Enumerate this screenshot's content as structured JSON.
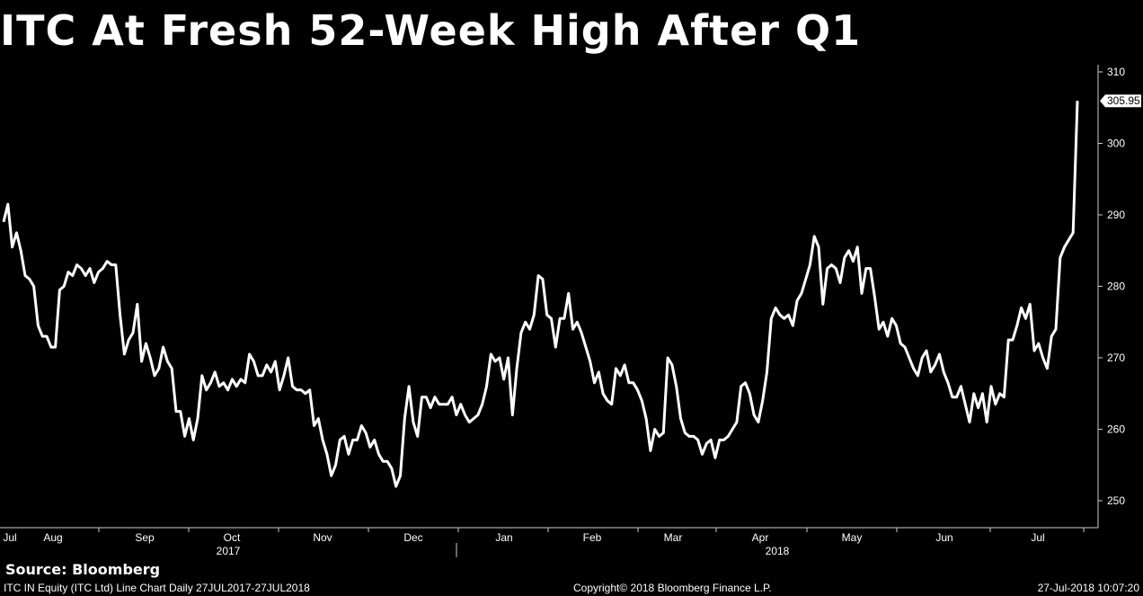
{
  "title": "ITC At Fresh 52-Week High After Q1",
  "source": "Source: Bloomberg",
  "footer": {
    "left": "ITC IN Equity (ITC Ltd) Line Chart  Daily 27JUL2017-27JUL2018",
    "center": "Copyright© 2018 Bloomberg Finance L.P.",
    "right": "27-Jul-2018 10:07:20"
  },
  "chart_data": {
    "type": "line",
    "title": "ITC At Fresh 52-Week High After Q1",
    "x_labels": [
      "Jul",
      "Aug",
      "Sep",
      "Oct",
      "Nov",
      "Dec",
      "Jan",
      "Feb",
      "Mar",
      "Apr",
      "May",
      "Jun",
      "Jul"
    ],
    "year_labels": [
      "2017",
      "2018"
    ],
    "y_ticks": [
      250,
      260,
      270,
      280,
      290,
      300,
      310
    ],
    "ylim": [
      247,
      312
    ],
    "last_value": "305.95",
    "grid": false,
    "line_color": "#ffffff",
    "background": "#000000",
    "series": [
      {
        "values": [
          289,
          291.5,
          285.5,
          287.5,
          285,
          281.5,
          281,
          280,
          274.5,
          273,
          273,
          271.5,
          271.5,
          279.5,
          280,
          282,
          281.5,
          283,
          282.5,
          281.5,
          282.5,
          280.5,
          282,
          282.5,
          283.5,
          283,
          283,
          276,
          270.5,
          272.5,
          273.5,
          277.5,
          269.5,
          272,
          270,
          267.5,
          268.5,
          271.5,
          269.5,
          268.5,
          262.5,
          262.5,
          259,
          261.5,
          258.5,
          261.5,
          267.5,
          265.5,
          266.5,
          268,
          266,
          266.5,
          265.5,
          267,
          266,
          267,
          266.5,
          270.5,
          269.5,
          267.5,
          267.5,
          269,
          268,
          269.5,
          265.5,
          267.5,
          270,
          266,
          265.5,
          265.5,
          265,
          265.5,
          260.5,
          261.5,
          258.5,
          256.5,
          253.5,
          255,
          258.5,
          259,
          256.5,
          258.5,
          258.5,
          260.5,
          259.5,
          257.5,
          258.5,
          256.5,
          255.5,
          255.5,
          254.5,
          252,
          253.5,
          261.5,
          266,
          261,
          259,
          264.5,
          264.5,
          263,
          264.5,
          263.5,
          263.5,
          263.5,
          264.5,
          262,
          263.5,
          262,
          261,
          261.5,
          262,
          263.5,
          266,
          270.5,
          269.5,
          270,
          267,
          270,
          262,
          268.5,
          273.5,
          275,
          274,
          276,
          281.5,
          281,
          276,
          275.5,
          271.5,
          275.5,
          275.5,
          279,
          274,
          275,
          273.5,
          271.5,
          269.5,
          266.5,
          268,
          265,
          264,
          263.5,
          268.5,
          267.5,
          269,
          266.5,
          266.5,
          265.5,
          264,
          261.5,
          257,
          260,
          259,
          259.5,
          270,
          269,
          266,
          261.5,
          259.5,
          259,
          259,
          258.5,
          256.5,
          258,
          258.5,
          256,
          258.5,
          258.5,
          259,
          260,
          261,
          266,
          266.5,
          265,
          262,
          261,
          264,
          268,
          275.5,
          277,
          276,
          275.5,
          276,
          274.5,
          278,
          279,
          281,
          283,
          287,
          285.5,
          277.5,
          282.5,
          283,
          282.5,
          280.5,
          284,
          285,
          283.5,
          285.5,
          279,
          282.5,
          282.5,
          278.5,
          274,
          275,
          273,
          275.5,
          274.5,
          272,
          271.5,
          270,
          268.5,
          267.5,
          270,
          271,
          268,
          269,
          270.5,
          268,
          266.5,
          264.5,
          264.5,
          266,
          263.5,
          261,
          265,
          263,
          265,
          261,
          266,
          263.5,
          265,
          264.5,
          272.5,
          272.5,
          274.5,
          277,
          275.5,
          277.5,
          271,
          272,
          270,
          268.5,
          273,
          274,
          284,
          285.5,
          286.5,
          287.5,
          305.95
        ]
      }
    ]
  }
}
